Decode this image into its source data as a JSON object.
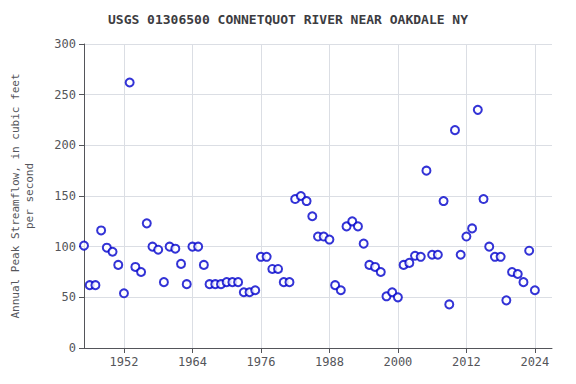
{
  "chart_data": {
    "type": "scatter",
    "title": "USGS 01306500 CONNETQUOT RIVER NEAR OAKDALE NY",
    "ylabel": "Annual Peak Streamflow, in cubic feet\nper second",
    "x": [
      1945,
      1946,
      1947,
      1948,
      1949,
      1950,
      1951,
      1952,
      1953,
      1954,
      1955,
      1956,
      1957,
      1958,
      1959,
      1960,
      1961,
      1962,
      1963,
      1964,
      1965,
      1966,
      1967,
      1968,
      1969,
      1970,
      1971,
      1972,
      1973,
      1974,
      1975,
      1976,
      1977,
      1978,
      1979,
      1980,
      1981,
      1982,
      1983,
      1984,
      1985,
      1986,
      1987,
      1988,
      1989,
      1990,
      1991,
      1992,
      1993,
      1994,
      1995,
      1996,
      1997,
      1998,
      1999,
      2000,
      2001,
      2002,
      2003,
      2004,
      2005,
      2006,
      2007,
      2008,
      2009,
      2010,
      2011,
      2012,
      2013,
      2014,
      2015,
      2016,
      2017,
      2018,
      2019,
      2020,
      2021,
      2022,
      2023,
      2024
    ],
    "values": [
      101,
      62,
      62,
      116,
      99,
      95,
      82,
      54,
      262,
      80,
      75,
      123,
      100,
      97,
      65,
      100,
      98,
      83,
      63,
      100,
      100,
      82,
      63,
      63,
      63,
      65,
      65,
      65,
      55,
      55,
      57,
      90,
      90,
      78,
      78,
      65,
      65,
      147,
      150,
      145,
      130,
      110,
      110,
      107,
      62,
      57,
      120,
      125,
      120,
      103,
      82,
      80,
      75,
      51,
      55,
      50,
      82,
      84,
      91,
      90,
      175,
      92,
      92,
      145,
      43,
      215,
      92,
      110,
      118,
      235,
      147,
      100,
      90,
      90,
      47,
      75,
      73,
      65,
      96,
      57
    ],
    "color": "#0000cc",
    "marker": "circle",
    "xlim": [
      1945,
      2027
    ],
    "xticks": [
      1952,
      1964,
      1976,
      1988,
      2000,
      2012,
      2024
    ],
    "ylim": [
      0,
      300
    ],
    "yticks": [
      0,
      50,
      100,
      150,
      200,
      250,
      300
    ],
    "grid": true
  }
}
